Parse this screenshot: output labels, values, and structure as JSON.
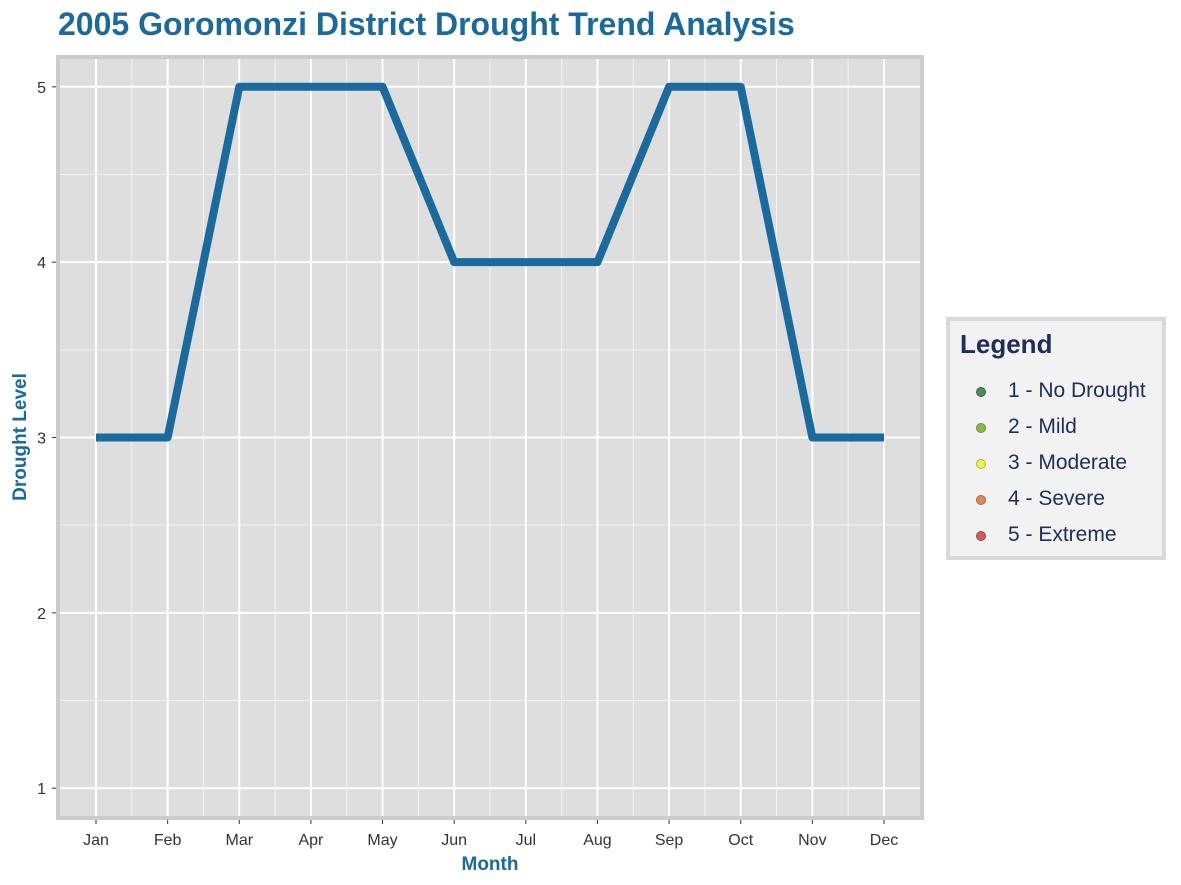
{
  "chart_data": {
    "type": "line",
    "title": "2005 Goromonzi District Drought Trend Analysis",
    "xlabel": "Month",
    "ylabel": "Drought Level",
    "categories": [
      "Jan",
      "Feb",
      "Mar",
      "Apr",
      "May",
      "Jun",
      "Jul",
      "Aug",
      "Sep",
      "Oct",
      "Nov",
      "Dec"
    ],
    "values": [
      3,
      3,
      5,
      5,
      5,
      4,
      4,
      4,
      5,
      5,
      3,
      3
    ],
    "yticks": [
      "1",
      "2",
      "3",
      "4",
      "5"
    ],
    "ylim": [
      0.83,
      5.17
    ],
    "grid": true,
    "line_color": "#1a6a9e",
    "legend": {
      "title": "Legend",
      "placement": "right",
      "items": [
        {
          "label": "1 - No Drought",
          "color": "#4f8a5a"
        },
        {
          "label": "2 - Mild",
          "color": "#8fb84a"
        },
        {
          "label": "3 - Moderate",
          "color": "#f2ef4e"
        },
        {
          "label": "4 - Severe",
          "color": "#e3885a"
        },
        {
          "label": "5 - Extreme",
          "color": "#d45a5a"
        }
      ]
    }
  },
  "colors": {
    "title": "#1a6a9e",
    "axis_title": "#1a6a9e",
    "legend_text": "#1f2d5a",
    "panel_bg": "#dedede",
    "panel_border": "#cccccc"
  }
}
